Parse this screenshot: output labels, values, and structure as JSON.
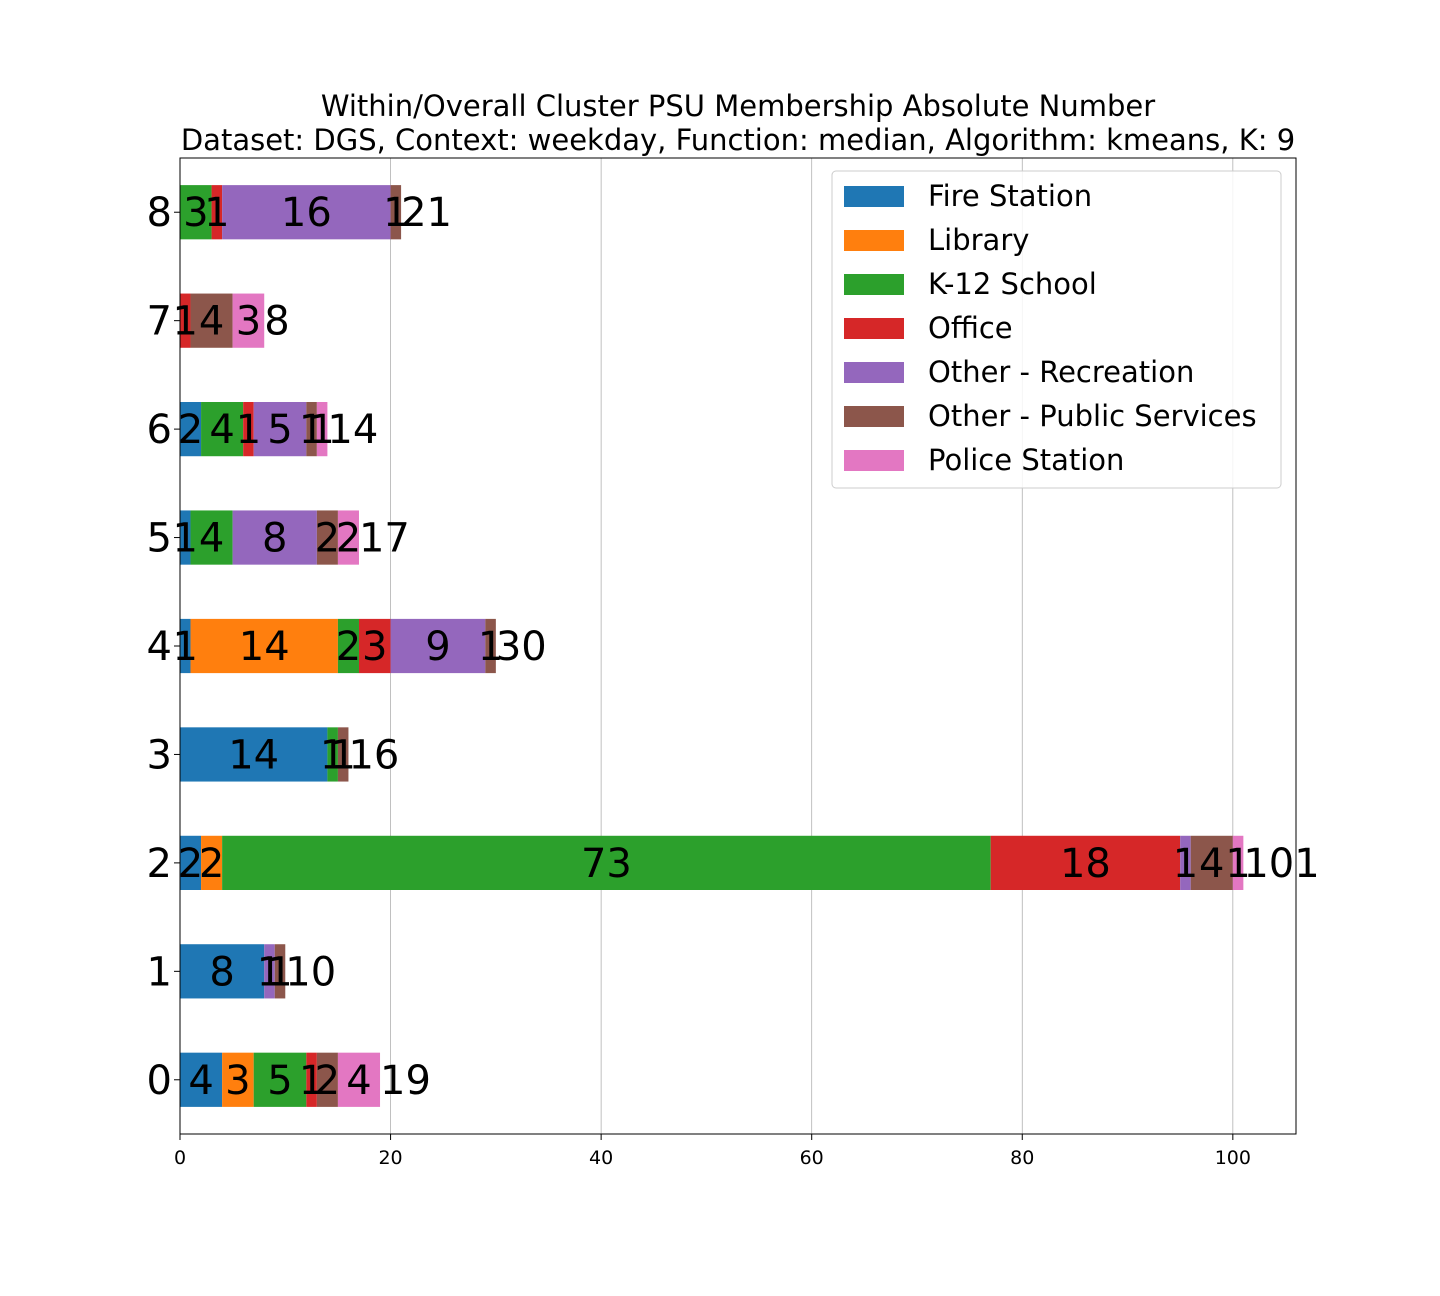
{
  "chart_data": {
    "type": "bar",
    "orientation": "horizontal",
    "stacked": true,
    "title": "Within/Overall Cluster PSU Membership Absolute Number",
    "subtitle": "Dataset: DGS, Context: weekday, Function: median, Algorithm: kmeans, K: 9",
    "xlabel": "",
    "ylabel": "",
    "xlim": [
      0,
      106
    ],
    "xticks": [
      0,
      20,
      40,
      60,
      80,
      100
    ],
    "categories": [
      "0",
      "1",
      "2",
      "3",
      "4",
      "5",
      "6",
      "7",
      "8"
    ],
    "series": [
      {
        "name": "Fire Station",
        "color": "#1f77b4",
        "values": [
          4,
          8,
          2,
          14,
          1,
          1,
          2,
          0,
          0
        ]
      },
      {
        "name": "Library",
        "color": "#ff7f0e",
        "values": [
          3,
          0,
          2,
          0,
          14,
          0,
          0,
          0,
          0
        ]
      },
      {
        "name": "K-12 School",
        "color": "#2ca02c",
        "values": [
          5,
          0,
          73,
          1,
          2,
          4,
          4,
          0,
          3
        ]
      },
      {
        "name": "Office",
        "color": "#d62728",
        "values": [
          1,
          0,
          18,
          0,
          3,
          0,
          1,
          1,
          1
        ]
      },
      {
        "name": "Other - Recreation",
        "color": "#9467bd",
        "values": [
          0,
          1,
          1,
          0,
          9,
          8,
          5,
          0,
          16
        ]
      },
      {
        "name": "Other - Public Services",
        "color": "#8c564b",
        "values": [
          2,
          1,
          4,
          1,
          1,
          2,
          1,
          4,
          1
        ]
      },
      {
        "name": "Police Station",
        "color": "#e377c2",
        "values": [
          4,
          0,
          1,
          0,
          0,
          2,
          1,
          3,
          0
        ]
      }
    ],
    "totals": [
      19,
      10,
      101,
      16,
      30,
      17,
      14,
      8,
      21
    ],
    "grid": "x",
    "legend_position": "top-right"
  }
}
